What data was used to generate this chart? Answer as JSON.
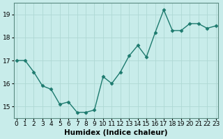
{
  "x": [
    0,
    1,
    2,
    3,
    4,
    5,
    6,
    7,
    8,
    9,
    10,
    11,
    12,
    13,
    14,
    15,
    16,
    17,
    18,
    19,
    20,
    21,
    22,
    23
  ],
  "y": [
    17.0,
    17.0,
    16.5,
    15.9,
    15.75,
    15.1,
    15.2,
    14.75,
    14.75,
    14.85,
    16.3,
    16.0,
    16.5,
    17.2,
    17.65,
    17.15,
    18.2,
    19.2,
    18.3,
    18.3,
    18.6,
    18.6,
    18.4,
    18.5
  ],
  "line_color": "#1d7a6e",
  "marker": "D",
  "marker_size": 2.5,
  "bg_color": "#c8ecea",
  "grid_color": "#aed8d4",
  "xlabel": "Humidex (Indice chaleur)",
  "ylim": [
    14.5,
    19.5
  ],
  "yticks": [
    15,
    16,
    17,
    18,
    19
  ],
  "xticks": [
    0,
    1,
    2,
    3,
    4,
    5,
    6,
    7,
    8,
    9,
    10,
    11,
    12,
    13,
    14,
    15,
    16,
    17,
    18,
    19,
    20,
    21,
    22,
    23
  ],
  "xlim": [
    -0.3,
    23.3
  ],
  "xlabel_fontsize": 7.5,
  "tick_fontsize": 6.5,
  "spine_color": "#5a8a80",
  "line_width": 1.0
}
